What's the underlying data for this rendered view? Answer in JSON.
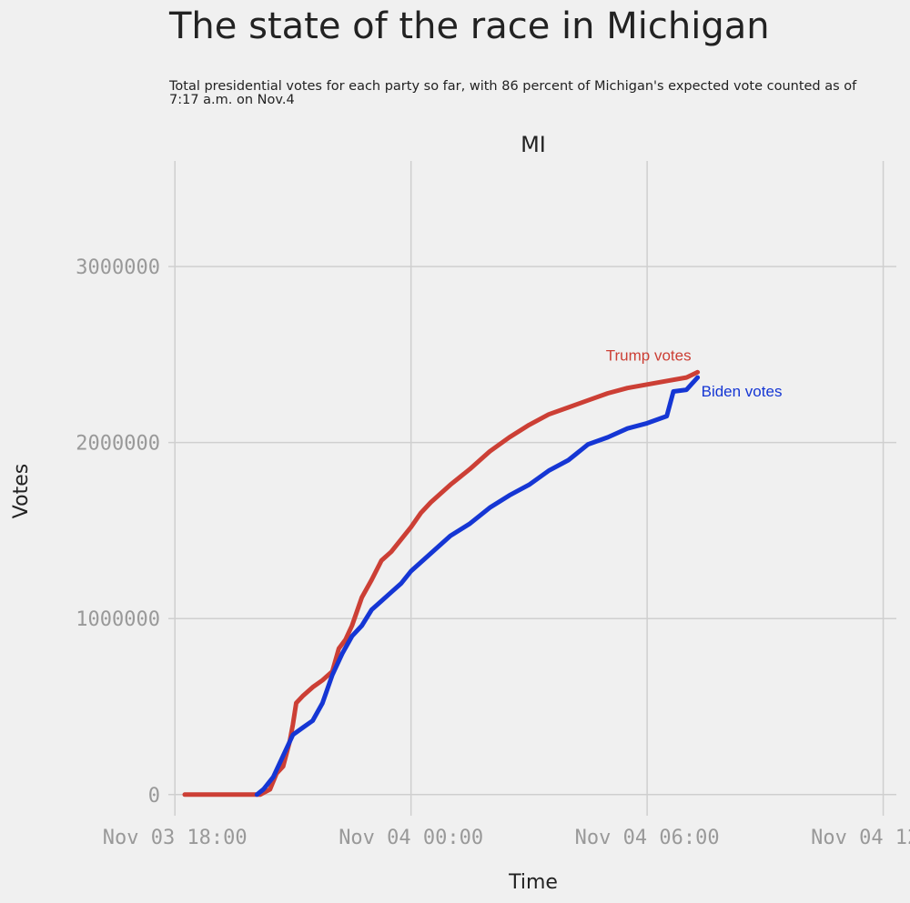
{
  "title": "The state of the race in Michigan",
  "subtitle": "Total presidential votes for each party so far, with 86 percent of Michigan's expected vote counted as of 7:17 a.m. on Nov.4",
  "chart_data": {
    "type": "line",
    "facet": "MI",
    "xlabel": "Time",
    "ylabel": "Votes",
    "grid": true,
    "x_ticks": [
      "Nov 03 18:00",
      "Nov 04 00:00",
      "Nov 04 06:00",
      "Nov 04 12:00"
    ],
    "y_ticks": [
      0,
      1000000,
      2000000,
      3000000
    ],
    "y_tick_labels": [
      "0",
      "1000000",
      "2000000",
      "3000000"
    ],
    "xlim": [
      "2020-11-03 17:50",
      "2020-11-04 12:20"
    ],
    "ylim": [
      -120000,
      3600000
    ],
    "series": [
      {
        "name": "Trump votes",
        "color": "#cc3f35",
        "points": [
          [
            "2020-11-03 18:15",
            0
          ],
          [
            "2020-11-03 20:10",
            0
          ],
          [
            "2020-11-03 20:25",
            30000
          ],
          [
            "2020-11-03 20:35",
            120000
          ],
          [
            "2020-11-03 20:45",
            160000
          ],
          [
            "2020-11-03 20:55",
            300000
          ],
          [
            "2020-11-03 21:00",
            400000
          ],
          [
            "2020-11-03 21:05",
            520000
          ],
          [
            "2020-11-03 21:15",
            560000
          ],
          [
            "2020-11-03 21:30",
            610000
          ],
          [
            "2020-11-03 21:45",
            650000
          ],
          [
            "2020-11-03 22:00",
            700000
          ],
          [
            "2020-11-03 22:10",
            830000
          ],
          [
            "2020-11-03 22:20",
            880000
          ],
          [
            "2020-11-03 22:30",
            960000
          ],
          [
            "2020-11-03 22:45",
            1120000
          ],
          [
            "2020-11-03 23:00",
            1220000
          ],
          [
            "2020-11-03 23:15",
            1330000
          ],
          [
            "2020-11-03 23:30",
            1380000
          ],
          [
            "2020-11-03 23:45",
            1450000
          ],
          [
            "2020-11-04 00:00",
            1520000
          ],
          [
            "2020-11-04 00:15",
            1600000
          ],
          [
            "2020-11-04 00:30",
            1660000
          ],
          [
            "2020-11-04 01:00",
            1760000
          ],
          [
            "2020-11-04 01:30",
            1850000
          ],
          [
            "2020-11-04 02:00",
            1950000
          ],
          [
            "2020-11-04 02:30",
            2030000
          ],
          [
            "2020-11-04 03:00",
            2100000
          ],
          [
            "2020-11-04 03:30",
            2160000
          ],
          [
            "2020-11-04 04:00",
            2200000
          ],
          [
            "2020-11-04 04:30",
            2240000
          ],
          [
            "2020-11-04 05:00",
            2280000
          ],
          [
            "2020-11-04 05:30",
            2310000
          ],
          [
            "2020-11-04 06:00",
            2330000
          ],
          [
            "2020-11-04 06:30",
            2350000
          ],
          [
            "2020-11-04 07:00",
            2370000
          ],
          [
            "2020-11-04 07:17",
            2400000
          ]
        ]
      },
      {
        "name": "Biden votes",
        "color": "#1536d4",
        "points": [
          [
            "2020-11-03 20:05",
            0
          ],
          [
            "2020-11-03 20:15",
            30000
          ],
          [
            "2020-11-03 20:30",
            100000
          ],
          [
            "2020-11-03 20:45",
            220000
          ],
          [
            "2020-11-03 21:00",
            340000
          ],
          [
            "2020-11-03 21:15",
            380000
          ],
          [
            "2020-11-03 21:30",
            420000
          ],
          [
            "2020-11-03 21:45",
            520000
          ],
          [
            "2020-11-03 22:00",
            680000
          ],
          [
            "2020-11-03 22:15",
            800000
          ],
          [
            "2020-11-03 22:30",
            900000
          ],
          [
            "2020-11-03 22:45",
            960000
          ],
          [
            "2020-11-03 23:00",
            1050000
          ],
          [
            "2020-11-03 23:15",
            1100000
          ],
          [
            "2020-11-03 23:30",
            1150000
          ],
          [
            "2020-11-03 23:45",
            1200000
          ],
          [
            "2020-11-04 00:00",
            1270000
          ],
          [
            "2020-11-04 00:30",
            1370000
          ],
          [
            "2020-11-04 01:00",
            1470000
          ],
          [
            "2020-11-04 01:30",
            1540000
          ],
          [
            "2020-11-04 02:00",
            1630000
          ],
          [
            "2020-11-04 02:30",
            1700000
          ],
          [
            "2020-11-04 03:00",
            1760000
          ],
          [
            "2020-11-04 03:30",
            1840000
          ],
          [
            "2020-11-04 04:00",
            1900000
          ],
          [
            "2020-11-04 04:30",
            1990000
          ],
          [
            "2020-11-04 05:00",
            2030000
          ],
          [
            "2020-11-04 05:30",
            2080000
          ],
          [
            "2020-11-04 06:00",
            2110000
          ],
          [
            "2020-11-04 06:30",
            2150000
          ],
          [
            "2020-11-04 06:40",
            2290000
          ],
          [
            "2020-11-04 07:00",
            2300000
          ],
          [
            "2020-11-04 07:17",
            2370000
          ]
        ]
      }
    ]
  }
}
